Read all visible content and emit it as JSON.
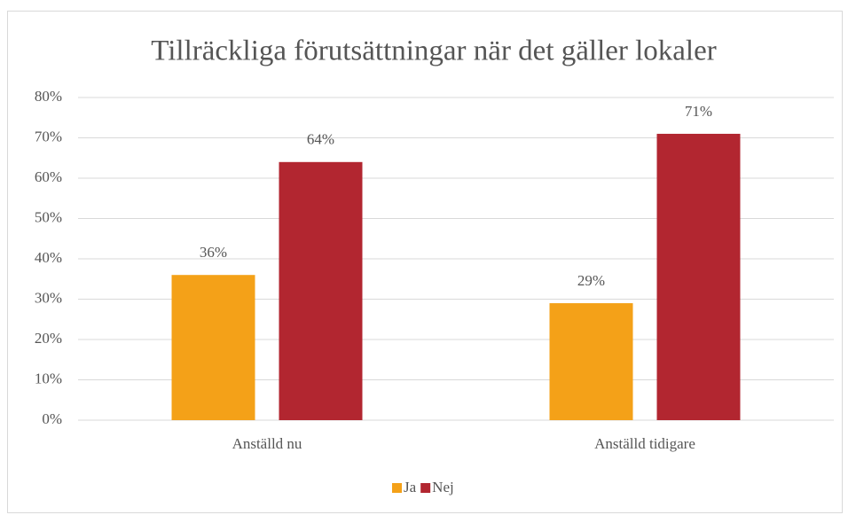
{
  "chart_data": {
    "type": "bar",
    "title": "Tillräckliga förutsättningar när det gäller lokaler",
    "categories": [
      "Anställd nu",
      "Anställd tidigare"
    ],
    "series": [
      {
        "name": "Ja",
        "color": "#f4a118",
        "values": [
          36,
          29
        ],
        "value_labels": [
          "36%",
          "29%"
        ]
      },
      {
        "name": "Nej",
        "color": "#b22630",
        "values": [
          64,
          71
        ],
        "value_labels": [
          "64%",
          "71%"
        ]
      }
    ],
    "ylim": [
      0,
      80
    ],
    "yticks": [
      {
        "value": 0,
        "label": "0%"
      },
      {
        "value": 10,
        "label": "10%"
      },
      {
        "value": 20,
        "label": "20%"
      },
      {
        "value": 30,
        "label": "30%"
      },
      {
        "value": 40,
        "label": "40%"
      },
      {
        "value": 50,
        "label": "50%"
      },
      {
        "value": 60,
        "label": "60%"
      },
      {
        "value": 70,
        "label": "70%"
      },
      {
        "value": 80,
        "label": "80%"
      }
    ],
    "grid": true,
    "legend": "bottom"
  }
}
